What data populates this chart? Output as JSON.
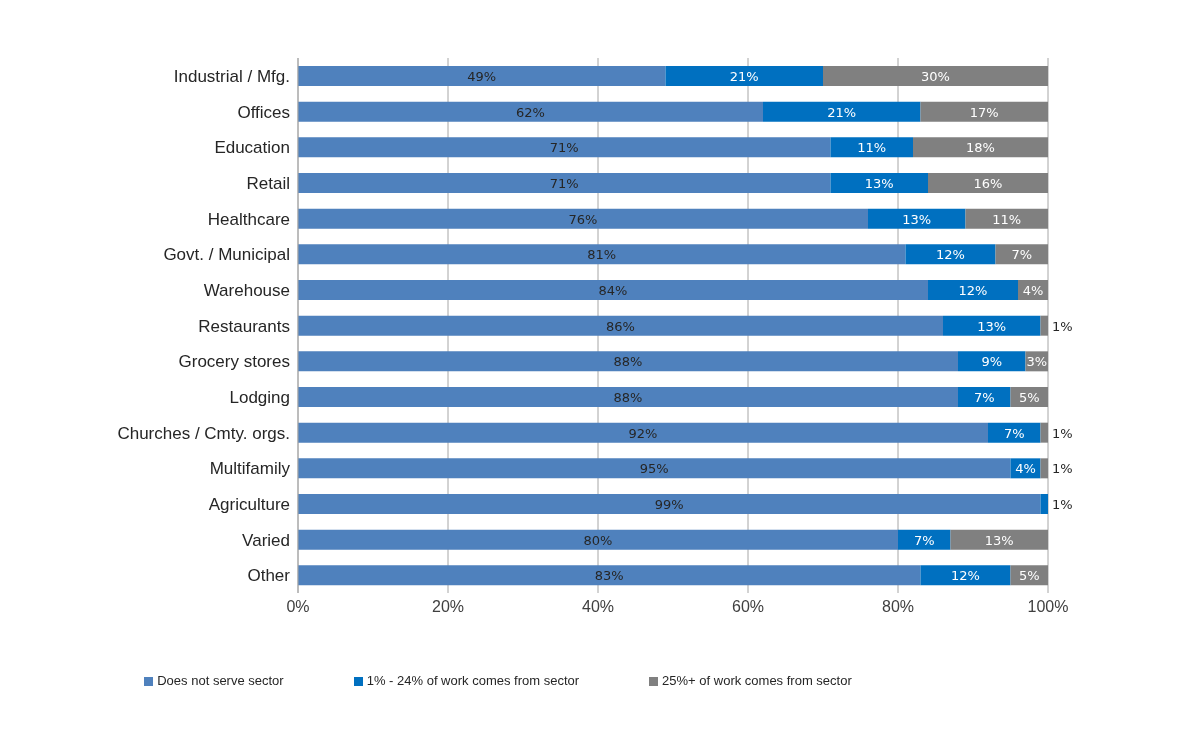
{
  "chart_data": {
    "type": "bar",
    "orientation": "horizontal",
    "stacked": true,
    "categories": [
      "Industrial / Mfg.",
      "Offices",
      "Education",
      "Retail",
      "Healthcare",
      "Govt. / Municipal",
      "Warehouse",
      "Restaurants",
      "Grocery stores",
      "Lodging",
      "Churches / Cmty. orgs.",
      "Multifamily",
      "Agriculture",
      "Varied",
      "Other"
    ],
    "series": [
      {
        "name": "Does not serve sector",
        "color": "#4f81bd",
        "values": [
          49,
          62,
          71,
          71,
          76,
          81,
          84,
          86,
          88,
          88,
          92,
          95,
          99,
          80,
          83
        ],
        "value_labels": [
          "49%",
          "62%",
          "71%",
          "71%",
          "76%",
          "81%",
          "84%",
          "86%",
          "88%",
          "88%",
          "92%",
          "95%",
          "99%",
          "80%",
          "83%"
        ]
      },
      {
        "name": "1% - 24% of work comes from sector",
        "color": "#0070c0",
        "values": [
          21,
          21,
          11,
          13,
          13,
          12,
          12,
          13,
          9,
          7,
          7,
          4,
          1,
          7,
          12
        ],
        "value_labels": [
          "21%",
          "21%",
          "11%",
          "13%",
          "13%",
          "12%",
          "12%",
          "13%",
          "9%",
          "7%",
          "7%",
          "4%",
          "1%",
          "7%",
          "12%"
        ]
      },
      {
        "name": "25%+ of work comes from sector",
        "color": "#808080",
        "values": [
          30,
          17,
          18,
          16,
          11,
          7,
          4,
          1,
          3,
          5,
          1,
          1,
          0,
          13,
          5
        ],
        "value_labels": [
          "30%",
          "17%",
          "18%",
          "16%",
          "11%",
          "7%",
          "4%",
          "1%",
          "3%",
          "5%",
          "1%",
          "1%",
          null,
          "13%",
          "5%"
        ]
      }
    ],
    "xlim": [
      0,
      100
    ],
    "xticks": [
      {
        "value": 0,
        "label": "0%"
      },
      {
        "value": 20,
        "label": "20%"
      },
      {
        "value": 40,
        "label": "40%"
      },
      {
        "value": 60,
        "label": "60%"
      },
      {
        "value": 80,
        "label": "80%"
      },
      {
        "value": 100,
        "label": "100%"
      }
    ],
    "grid": "x",
    "legend": "bottom"
  }
}
